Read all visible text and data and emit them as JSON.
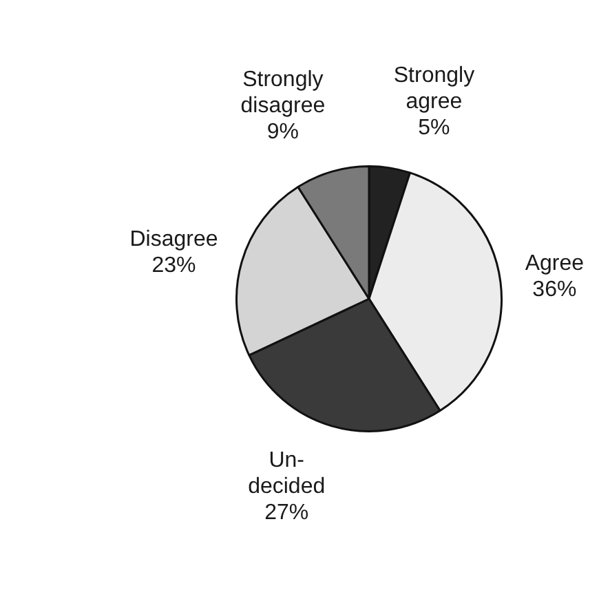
{
  "chart_data": {
    "type": "pie",
    "categories": [
      "Strongly agree",
      "Agree",
      "Un-decided",
      "Disagree",
      "Strongly disagree"
    ],
    "values": [
      5,
      36,
      27,
      23,
      9
    ],
    "colors": [
      "#222222",
      "#ececec",
      "#3a3a3a",
      "#d4d4d4",
      "#7a7a7a"
    ],
    "value_labels": [
      "5%",
      "36%",
      "27%",
      "23%",
      "9%"
    ],
    "legend": false
  }
}
